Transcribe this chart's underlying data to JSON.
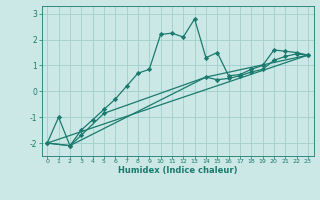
{
  "xlabel": "Humidex (Indice chaleur)",
  "background_color": "#cce8e6",
  "grid_color": "#9fcfcc",
  "line_color": "#1a7a6e",
  "xlim": [
    -0.5,
    23.5
  ],
  "ylim": [
    -2.5,
    3.3
  ],
  "yticks": [
    -2,
    -1,
    0,
    1,
    2,
    3
  ],
  "xticks": [
    0,
    1,
    2,
    3,
    4,
    5,
    6,
    7,
    8,
    9,
    10,
    11,
    12,
    13,
    14,
    15,
    16,
    17,
    18,
    19,
    20,
    21,
    22,
    23
  ],
  "series1_x": [
    0,
    1,
    2,
    3,
    4,
    5,
    6,
    7,
    8,
    9,
    10,
    11,
    12,
    13,
    14,
    15,
    16,
    17,
    18,
    19,
    20,
    21,
    22,
    23
  ],
  "series1_y": [
    -2.0,
    -1.0,
    -2.1,
    -1.5,
    -1.1,
    -0.7,
    -0.3,
    0.2,
    0.7,
    0.85,
    2.2,
    2.25,
    2.1,
    2.8,
    1.3,
    1.5,
    0.6,
    0.65,
    0.85,
    1.0,
    1.6,
    1.55,
    1.5,
    1.4
  ],
  "series2_x": [
    0,
    2,
    3,
    5,
    14,
    15,
    16,
    17,
    18,
    19,
    20,
    21,
    22,
    23
  ],
  "series2_y": [
    -2.0,
    -2.1,
    -1.7,
    -0.85,
    0.55,
    0.45,
    0.5,
    0.6,
    0.75,
    0.85,
    1.2,
    1.35,
    1.45,
    1.4
  ],
  "series3_x": [
    0,
    23
  ],
  "series3_y": [
    -2.0,
    1.4
  ],
  "series4_x": [
    0,
    2,
    14,
    23
  ],
  "series4_y": [
    -2.0,
    -2.1,
    0.55,
    1.4
  ]
}
